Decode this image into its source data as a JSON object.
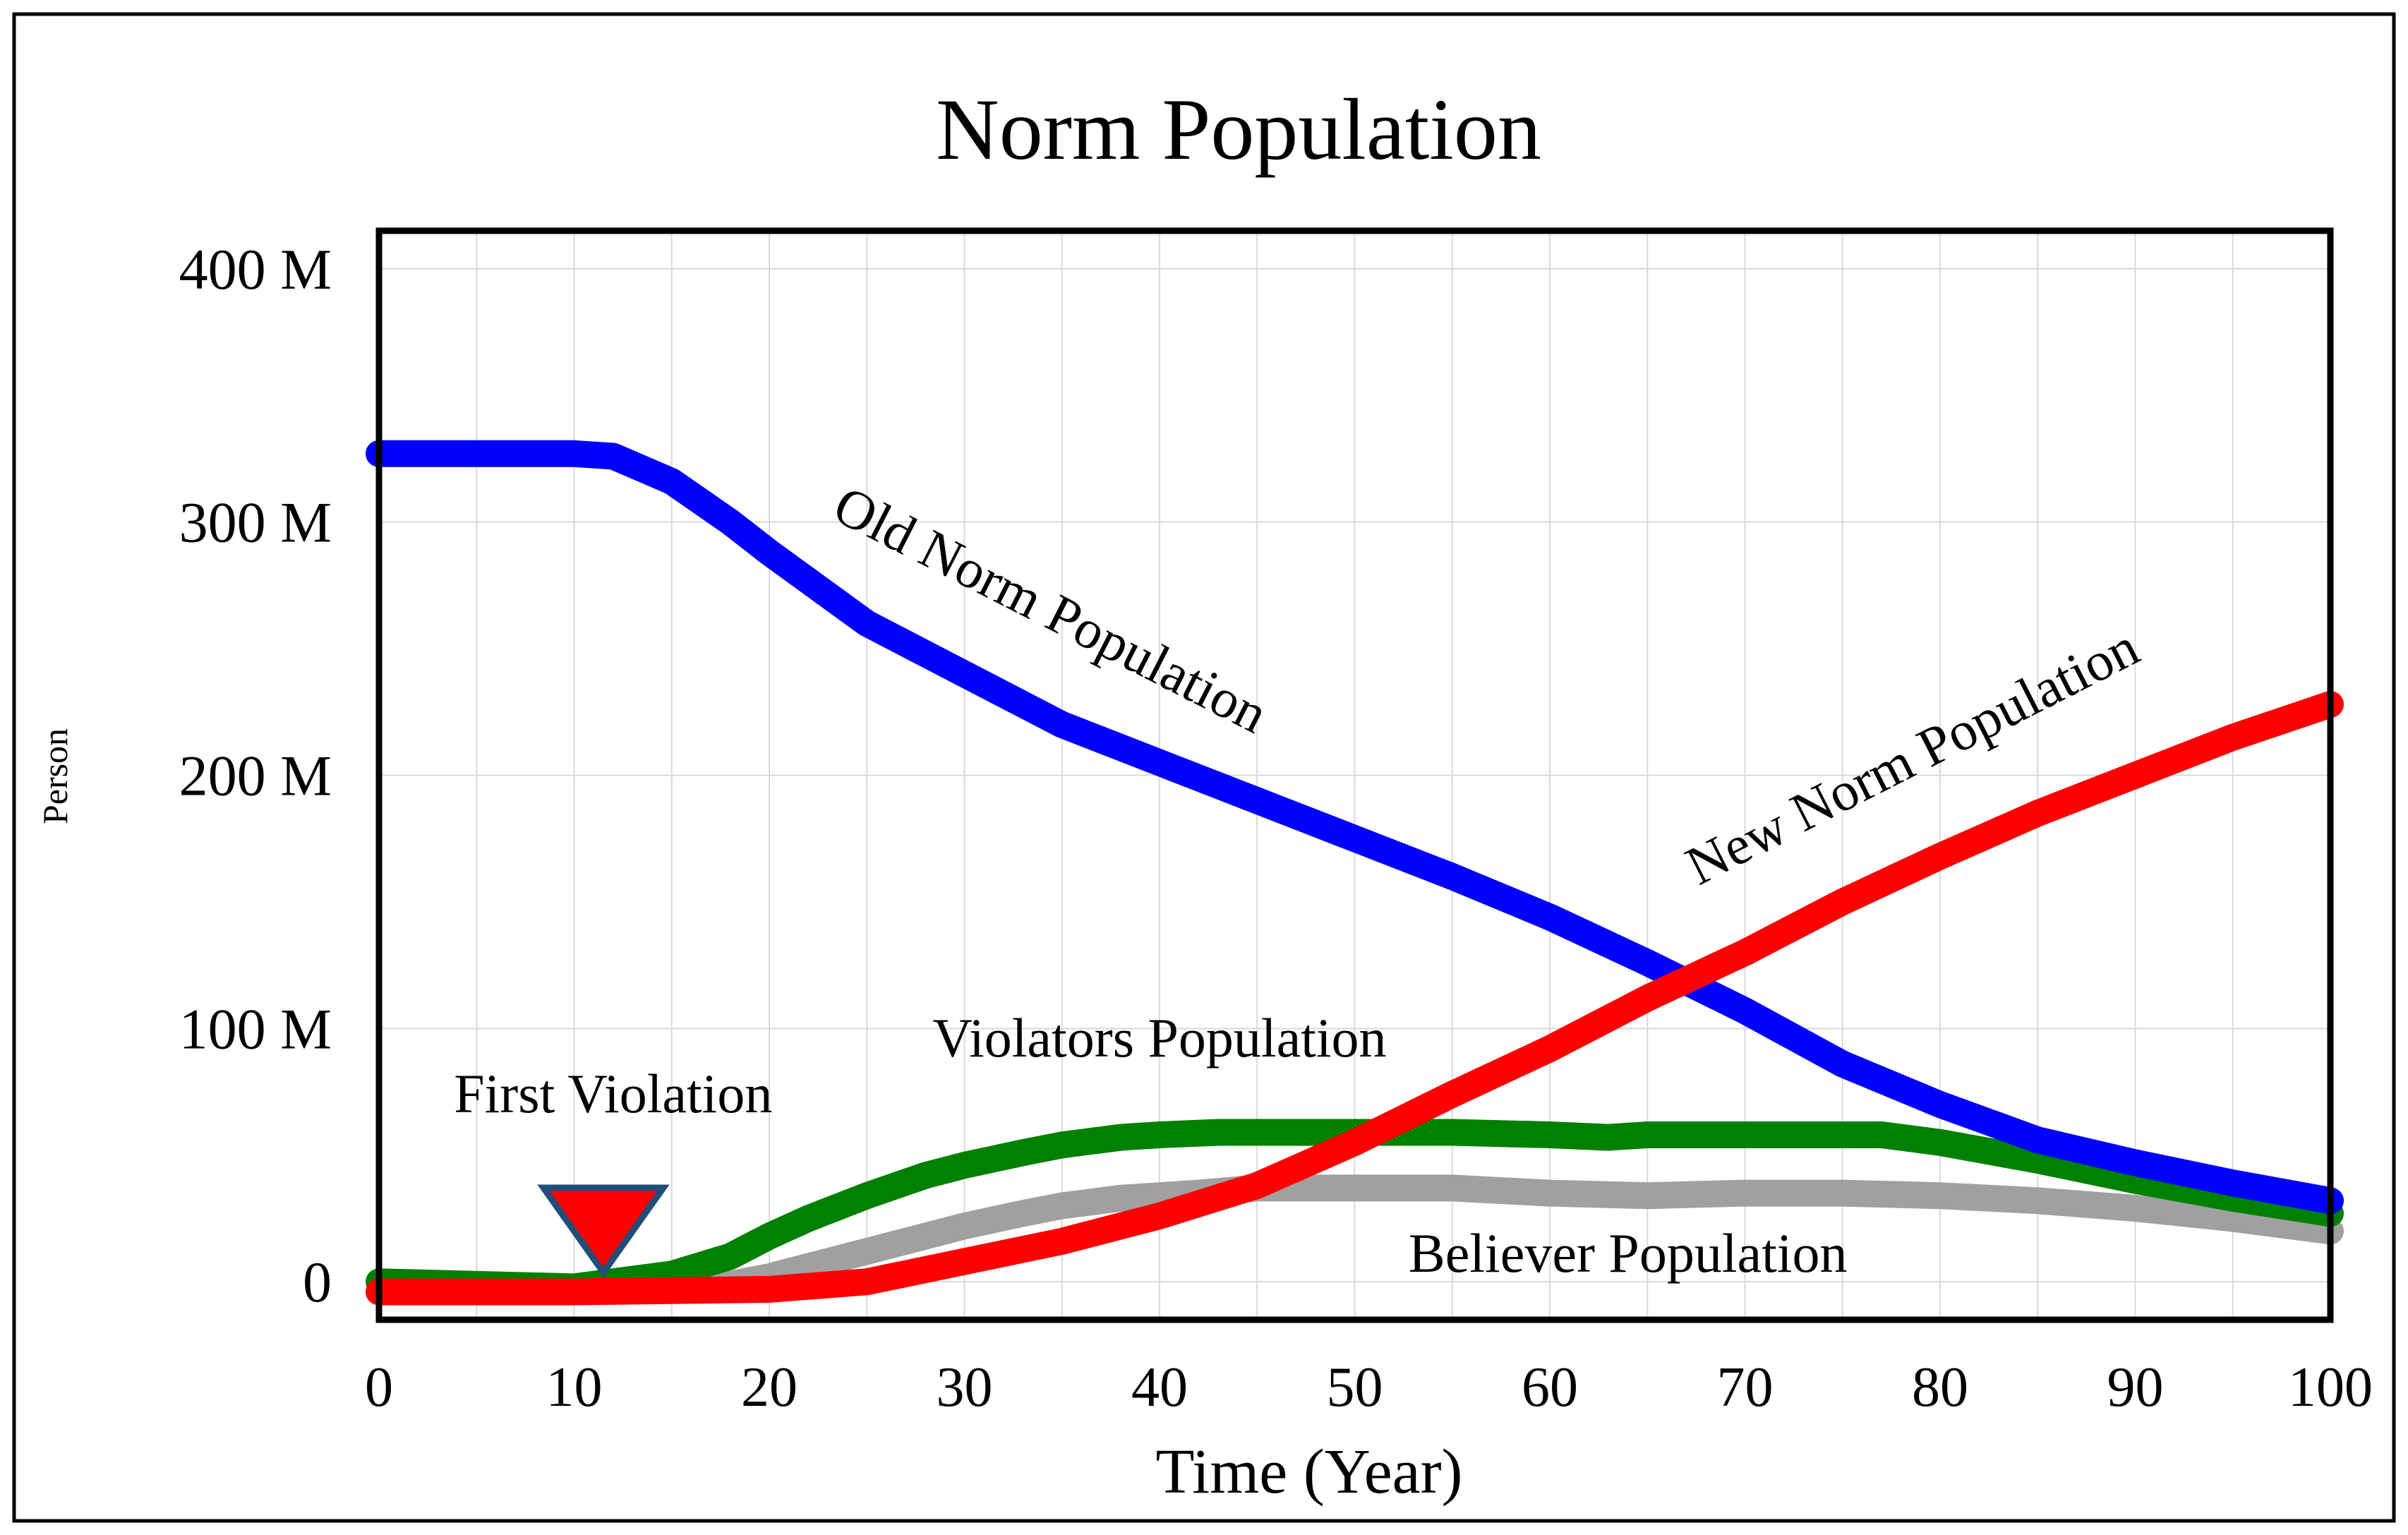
{
  "chart_data": {
    "type": "line",
    "title": "Norm Population",
    "xlabel": "Time (Year)",
    "ylabel": "Person",
    "xlim": [
      0,
      100
    ],
    "ylim": [
      -15,
      415
    ],
    "x_ticks": [
      0,
      10,
      20,
      30,
      40,
      50,
      60,
      70,
      80,
      90,
      100
    ],
    "x_tick_labels": [
      "0",
      "10",
      "20",
      "30",
      "40",
      "50",
      "60",
      "70",
      "80",
      "90",
      "100"
    ],
    "y_ticks": [
      0,
      100,
      200,
      300,
      400
    ],
    "y_tick_labels": [
      "0",
      "100 M",
      "200 M",
      "300 M",
      "400 M"
    ],
    "grid": true,
    "series": [
      {
        "name": "Believer Population",
        "color": "#a0a0a0",
        "x": [
          0,
          10,
          12,
          15,
          18,
          20,
          22,
          25,
          28,
          30,
          33,
          35,
          38,
          40,
          42,
          45,
          50,
          55,
          60,
          65,
          70,
          75,
          80,
          85,
          90,
          95,
          100
        ],
        "y": [
          -4,
          -3,
          -3,
          -2,
          -1,
          2,
          6,
          12,
          18,
          22,
          27,
          30,
          33,
          34,
          35,
          37,
          37,
          37,
          35,
          34,
          35,
          35,
          34,
          32,
          29,
          25,
          20
        ]
      },
      {
        "name": "Violators Population",
        "color": "#008000",
        "x": [
          0,
          10,
          12,
          15,
          18,
          20,
          22,
          25,
          28,
          30,
          33,
          35,
          38,
          40,
          43,
          45,
          50,
          55,
          60,
          63,
          65,
          70,
          75,
          77,
          80,
          85,
          90,
          95,
          100
        ],
        "y": [
          0,
          -2,
          0,
          3,
          10,
          18,
          25,
          34,
          42,
          46,
          51,
          54,
          57,
          58,
          59,
          59,
          59,
          59,
          58,
          57,
          58,
          58,
          58,
          58,
          55,
          48,
          40,
          33,
          27
        ]
      },
      {
        "name": "Old Norm Population",
        "color": "#0000ff",
        "x": [
          0,
          5,
          10,
          12,
          15,
          18,
          20,
          25,
          30,
          35,
          40,
          45,
          50,
          55,
          60,
          65,
          70,
          75,
          80,
          85,
          90,
          95,
          100
        ],
        "y": [
          327,
          327,
          327,
          326,
          316,
          300,
          288,
          260,
          240,
          220,
          205,
          190,
          175,
          160,
          144,
          126,
          107,
          86,
          70,
          56,
          47,
          39,
          32
        ]
      },
      {
        "name": "New Norm Population",
        "color": "#ff0000",
        "x": [
          0,
          10,
          20,
          25,
          30,
          35,
          40,
          45,
          50,
          55,
          60,
          65,
          70,
          75,
          80,
          85,
          90,
          95,
          100
        ],
        "y": [
          -4,
          -4,
          -3,
          0,
          8,
          16,
          26,
          38,
          55,
          74,
          92,
          112,
          130,
          150,
          168,
          185,
          200,
          215,
          228
        ]
      }
    ],
    "annotations": [
      {
        "text": "First Violation",
        "x": 12,
        "y": 67
      },
      {
        "text": "Violators Population",
        "x": 40,
        "y": 89
      },
      {
        "text": "Believer Population",
        "x": 64,
        "y": 4
      },
      {
        "text": "Old Norm Population",
        "x": 34,
        "y": 259,
        "angle": 27
      },
      {
        "text": "New Norm Population",
        "x": 79,
        "y": 201,
        "angle": -27
      }
    ],
    "marker": {
      "name": "first-violation-marker",
      "x": 11.5,
      "color": "#ff0000",
      "outline": "#1f4e79"
    }
  }
}
